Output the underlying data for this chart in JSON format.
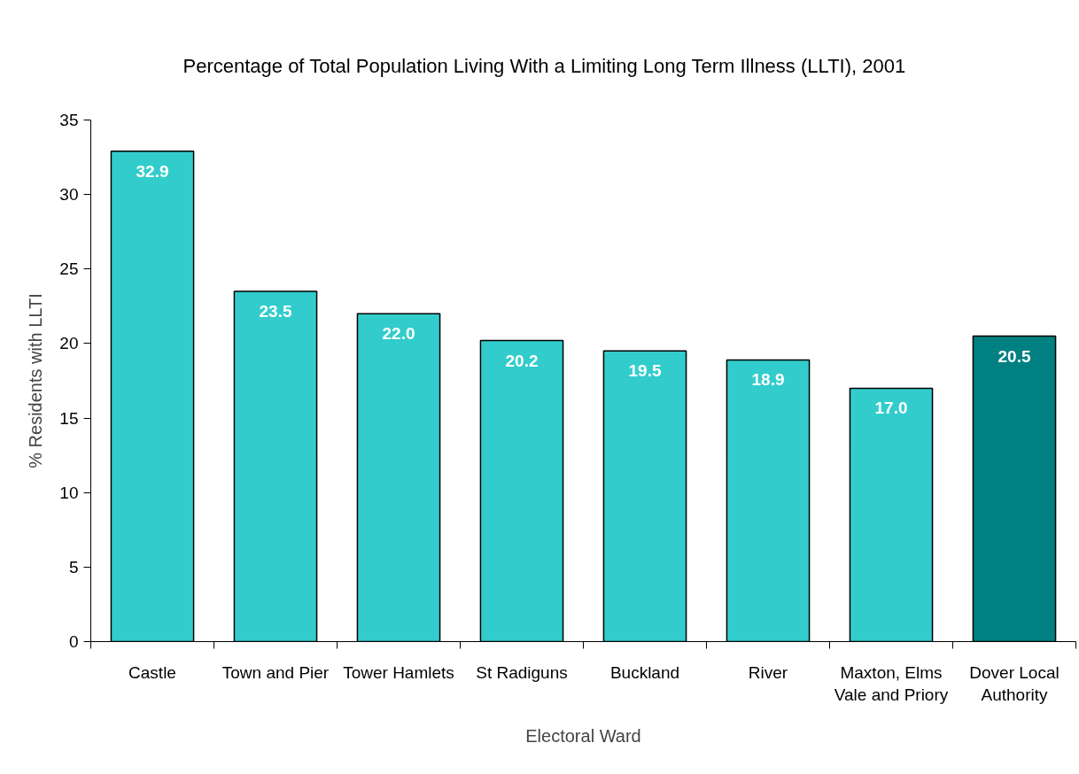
{
  "chart_data": {
    "type": "bar",
    "title": "Percentage of Total Population Living With a Limiting Long Term Illness (LLTI), 2001",
    "xlabel": "Electoral Ward",
    "ylabel": "% Residents with LLTI",
    "categories": [
      "Castle",
      "Town and Pier",
      "Tower Hamlets",
      "St Radiguns",
      "Buckland",
      "River",
      "Maxton, Elms\nVale and Priory",
      "Dover Local\nAuthority"
    ],
    "values": [
      32.9,
      23.5,
      22.0,
      20.2,
      19.5,
      18.9,
      17.0,
      20.5
    ],
    "value_labels": [
      "32.9",
      "23.5",
      "22.0",
      "20.2",
      "19.5",
      "18.9",
      "17.0",
      "20.5"
    ],
    "colors": [
      "#33cccc",
      "#33cccc",
      "#33cccc",
      "#33cccc",
      "#33cccc",
      "#33cccc",
      "#33cccc",
      "#008080"
    ],
    "ylim": [
      0,
      35
    ],
    "yticks": [
      0,
      5,
      10,
      15,
      20,
      25,
      30,
      35
    ]
  }
}
